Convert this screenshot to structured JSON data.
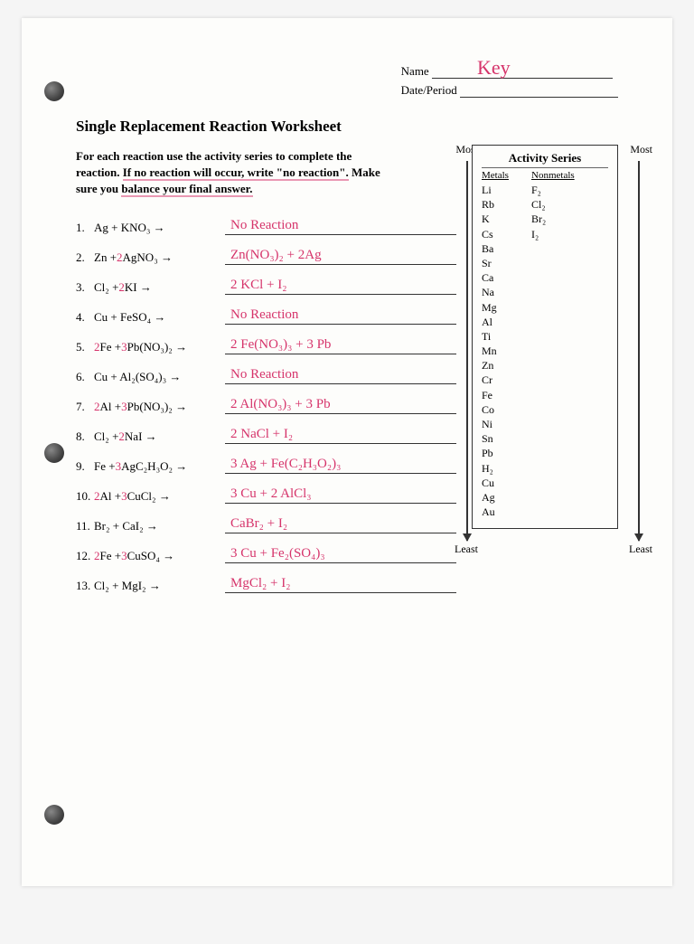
{
  "header": {
    "name_label": "Name",
    "date_label": "Date/Period",
    "name_value": "Key"
  },
  "title": "Single Replacement Reaction Worksheet",
  "instructions_pre": "For each reaction use the activity series to complete the reaction. ",
  "instructions_mid": "If no reaction will occur, write \"no reaction\".",
  "instructions_post": " Make sure you ",
  "instructions_u2": "balance your final answer.",
  "arrow_labels": {
    "most": "Most",
    "least": "Least"
  },
  "activity": {
    "title": "Activity Series",
    "metals_label": "Metals",
    "nonmetals_label": "Nonmetals",
    "metals": [
      "Li",
      "Rb",
      "K",
      "Cs",
      "Ba",
      "Sr",
      "Ca",
      "Na",
      "Mg",
      "Al",
      "Ti",
      "Mn",
      "Zn",
      "Cr",
      "Fe",
      "Co",
      "Ni",
      "Sn",
      "Pb",
      "H₂",
      "Cu",
      "Ag",
      "Au"
    ],
    "nonmetals": [
      "F₂",
      "Cl₂",
      "Br₂",
      "I₂"
    ]
  },
  "problems": [
    {
      "n": "1.",
      "react": "Ag + KNO₃ →",
      "ans": "No Reaction"
    },
    {
      "n": "2.",
      "react": "Zn +<span class='coef'>2</span>AgNO₃ →",
      "ans": "Zn(NO₃)₂ + 2Ag"
    },
    {
      "n": "3.",
      "react": "Cl₂ +<span class='coef'>2</span>KI →",
      "ans": "2 KCl + I₂"
    },
    {
      "n": "4.",
      "react": "Cu + FeSO₄ →",
      "ans": "No Reaction"
    },
    {
      "n": "5.",
      "react": "<span class='coef'>2</span>Fe +<span class='coef'>3</span>Pb(NO₃)₂ →",
      "ans": "2 Fe(NO₃)₃ + 3 Pb"
    },
    {
      "n": "6.",
      "react": "Cu + Al₂(SO₄)₃ →",
      "ans": "No Reaction"
    },
    {
      "n": "7.",
      "react": "<span class='coef'>2</span>Al +<span class='coef'>3</span>Pb(NO₃)₂ →",
      "ans": "2 Al(NO₃)₃ + 3 Pb"
    },
    {
      "n": "8.",
      "react": "Cl₂ +<span class='coef'>2</span>NaI →",
      "ans": "2 NaCl + I₂"
    },
    {
      "n": "9.",
      "react": "Fe +<span class='coef'>3</span>AgC₂H₃O₂ →",
      "ans": "3 Ag + Fe(C₂H₃O₂)₃"
    },
    {
      "n": "10.",
      "react": "<span class='coef'>2</span>Al +<span class='coef'>3</span>CuCl₂ →",
      "ans": "3 Cu + 2 AlCl₃"
    },
    {
      "n": "11.",
      "react": "Br₂ + CaI₂ →",
      "ans": "CaBr₂ + I₂"
    },
    {
      "n": "12.",
      "react": "<span class='coef'>2</span>Fe +<span class='coef'>3</span>CuSO₄ →",
      "ans": "3 Cu + Fe₂(SO₄)₃"
    },
    {
      "n": "13.",
      "react": "Cl₂ + MgI₂ →",
      "ans": "MgCl₂ + I₂"
    }
  ]
}
